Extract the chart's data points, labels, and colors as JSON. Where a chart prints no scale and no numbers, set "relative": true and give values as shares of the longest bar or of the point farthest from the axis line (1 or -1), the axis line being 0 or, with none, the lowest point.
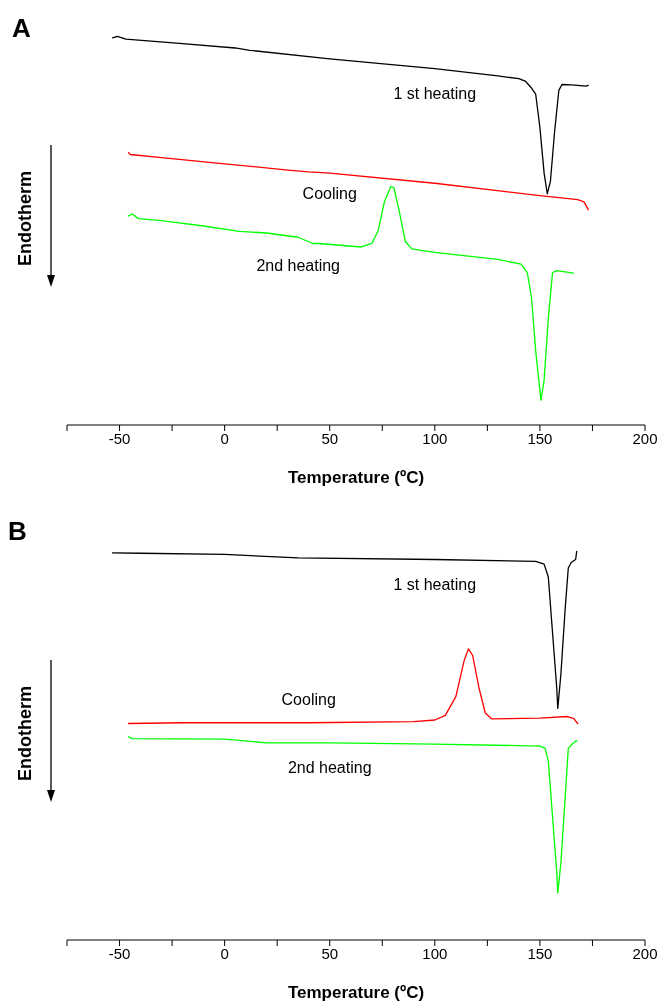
{
  "chart_data": [
    {
      "type": "line",
      "title": "A",
      "xlabel": "Temperature (ºC)",
      "ylabel": "Endotherm",
      "relative": true,
      "xlim": [
        -75,
        200
      ],
      "xticks": [
        {
          "value": -75,
          "label": null
        },
        -50,
        {
          "value": -25,
          "label": null
        },
        0,
        {
          "value": 25,
          "label": null
        },
        50,
        {
          "value": 75,
          "label": null
        },
        100,
        {
          "value": 125,
          "label": null
        },
        150,
        {
          "value": 175,
          "label": null
        },
        200
      ],
      "grid": false,
      "legend": false,
      "series": [
        {
          "name": "1 st heating",
          "color": "#000000",
          "x": [
            -53.3,
            -51,
            -47,
            -20,
            5,
            12,
            50,
            100,
            130,
            140,
            143,
            146,
            148,
            150,
            152,
            153.5,
            155,
            157,
            159,
            160.5,
            165,
            172,
            173
          ],
          "values": [
            0.996,
            1.0,
            0.993,
            0.981,
            0.97,
            0.964,
            0.942,
            0.917,
            0.898,
            0.891,
            0.885,
            0.867,
            0.851,
            0.765,
            0.648,
            0.595,
            0.627,
            0.755,
            0.861,
            0.876,
            0.875,
            0.872,
            0.874
          ]
        },
        {
          "name": "Cooling",
          "color": "#ff0000",
          "x": [
            -45.7,
            -45,
            -30,
            0,
            30,
            40,
            50,
            100,
            150,
            168,
            171,
            173
          ],
          "values": [
            0.701,
            0.696,
            0.688,
            0.672,
            0.656,
            0.651,
            0.648,
            0.622,
            0.59,
            0.58,
            0.574,
            0.554
          ]
        },
        {
          "name": "2nd heating",
          "color": "#00ff00",
          "x": [
            -45.7,
            -44,
            -41,
            -30,
            -10,
            7,
            20,
            35,
            42,
            45,
            65,
            70,
            73,
            76,
            79,
            80.5,
            83,
            86,
            89,
            100,
            130,
            141,
            144,
            146,
            148,
            150.5,
            152,
            154,
            156,
            158,
            166
          ],
          "values": [
            0.538,
            0.543,
            0.531,
            0.526,
            0.512,
            0.498,
            0.494,
            0.483,
            0.467,
            0.467,
            0.458,
            0.467,
            0.499,
            0.574,
            0.613,
            0.611,
            0.552,
            0.472,
            0.453,
            0.444,
            0.426,
            0.414,
            0.392,
            0.328,
            0.19,
            0.064,
            0.115,
            0.275,
            0.392,
            0.397,
            0.391
          ]
        }
      ]
    },
    {
      "type": "line",
      "title": "B",
      "xlabel": "Temperature (ºC)",
      "ylabel": "Endotherm",
      "relative": true,
      "xlim": [
        -75,
        200
      ],
      "xticks": [
        {
          "value": -75,
          "label": null
        },
        -50,
        {
          "value": -25,
          "label": null
        },
        0,
        {
          "value": 25,
          "label": null
        },
        50,
        {
          "value": 75,
          "label": null
        },
        100,
        {
          "value": 125,
          "label": null
        },
        150,
        {
          "value": 175,
          "label": null
        },
        200
      ],
      "grid": false,
      "legend": false,
      "series": [
        {
          "name": "1 st heating",
          "color": "#000000",
          "x": [
            -53.3,
            -40,
            0,
            35,
            100,
            148,
            152,
            154,
            156,
            158,
            158.5,
            160,
            162,
            163.5,
            165,
            167,
            167.5
          ],
          "values": [
            0.996,
            0.995,
            0.992,
            0.983,
            0.979,
            0.974,
            0.967,
            0.934,
            0.791,
            0.649,
            0.596,
            0.685,
            0.851,
            0.957,
            0.972,
            0.979,
            1.0
          ]
        },
        {
          "name": "Cooling",
          "color": "#ff0000",
          "x": [
            -45.7,
            -20,
            40,
            90,
            100,
            105,
            110,
            114,
            116,
            118,
            121,
            124,
            127,
            150,
            163,
            166,
            168
          ],
          "values": [
            0.557,
            0.559,
            0.559,
            0.562,
            0.566,
            0.578,
            0.626,
            0.72,
            0.749,
            0.732,
            0.649,
            0.584,
            0.569,
            0.571,
            0.575,
            0.57,
            0.557
          ]
        },
        {
          "name": "2nd heating",
          "color": "#00ff00",
          "x": [
            -45.7,
            -44,
            0,
            20,
            50,
            100,
            150,
            152.5,
            154,
            156,
            158,
            158.5,
            160,
            162,
            163.5,
            165.5,
            167.5
          ],
          "values": [
            0.523,
            0.518,
            0.517,
            0.507,
            0.507,
            0.504,
            0.499,
            0.493,
            0.46,
            0.318,
            0.175,
            0.121,
            0.199,
            0.365,
            0.493,
            0.505,
            0.513
          ]
        }
      ]
    }
  ]
}
